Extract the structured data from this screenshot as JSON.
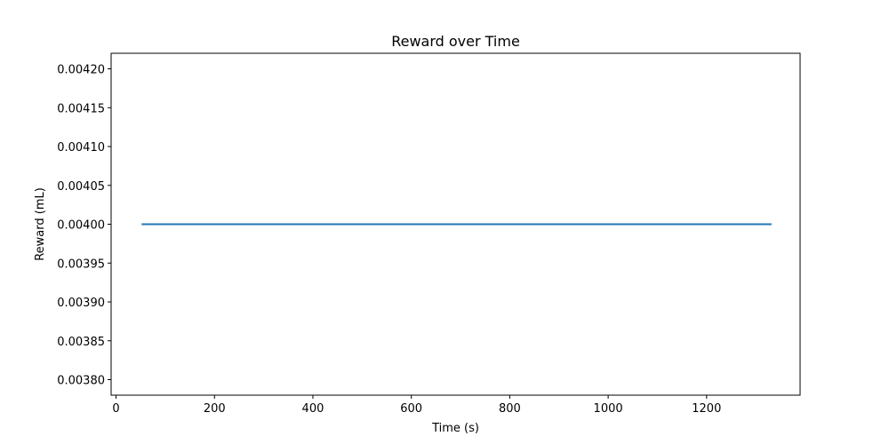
{
  "chart_data": {
    "type": "line",
    "title": "Reward over Time",
    "xlabel": "Time (s)",
    "ylabel": "Reward (mL)",
    "xlim": [
      -10,
      1390
    ],
    "ylim": [
      0.00378,
      0.00422
    ],
    "xticks": [
      0,
      200,
      400,
      600,
      800,
      1000,
      1200
    ],
    "xtick_labels": [
      "0",
      "200",
      "400",
      "600",
      "800",
      "1000",
      "1200"
    ],
    "yticks": [
      0.0038,
      0.00385,
      0.0039,
      0.00395,
      0.004,
      0.00405,
      0.0041,
      0.00415,
      0.0042
    ],
    "ytick_labels": [
      "0.00380",
      "0.00385",
      "0.00390",
      "0.00395",
      "0.00400",
      "0.00405",
      "0.00410",
      "0.00415",
      "0.00420"
    ],
    "grid": false,
    "series": [
      {
        "color": "#1f77b4",
        "x": [
          52,
          1332
        ],
        "y": [
          0.004,
          0.004
        ]
      }
    ]
  }
}
